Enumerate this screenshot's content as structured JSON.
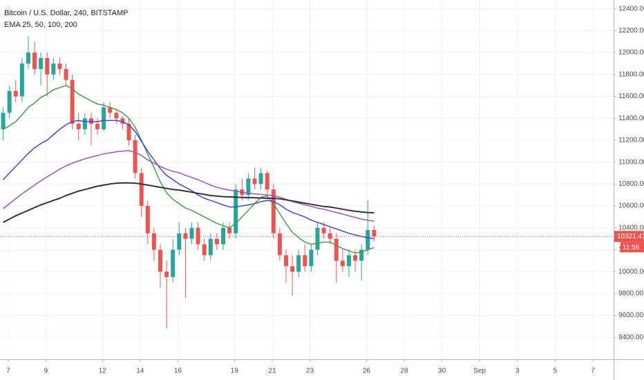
{
  "chart_data": {
    "type": "candlestick",
    "title": "Bitcoin / U.S. Dollar, 240, BITSTAMP",
    "subtitle": "EMA 25, 50, 100, 200",
    "up_color": "#26a69a",
    "down_color": "#ef5350",
    "grid": true,
    "countdown": "11:56",
    "open": [
      11300,
      11450,
      11650,
      11600,
      11900,
      12000,
      11850,
      11950,
      11800,
      11900,
      11850,
      11750,
      11350,
      11300,
      11400,
      11350,
      11300,
      11500,
      11450,
      11400,
      11350,
      11200,
      10900,
      10600,
      10350,
      10200,
      10000,
      9950,
      10200,
      10350,
      10300,
      10400,
      10250,
      10150,
      10300,
      10250,
      10400,
      10350,
      10750,
      10700,
      10850,
      10800,
      10900,
      10750,
      10350,
      10150,
      10050,
      10000,
      10150,
      10050,
      10200,
      10400,
      10350,
      10300,
      10100,
      10050,
      10150,
      10100,
      10200,
      10380
    ],
    "high": [
      11500,
      11700,
      11750,
      11950,
      12150,
      12100,
      12000,
      12000,
      11950,
      11950,
      11900,
      11800,
      11450,
      11450,
      11450,
      11400,
      11550,
      11550,
      11480,
      11420,
      11400,
      11250,
      10950,
      10650,
      10400,
      10250,
      10100,
      10300,
      10450,
      10400,
      10450,
      10450,
      10300,
      10350,
      10350,
      10450,
      10450,
      10800,
      10850,
      10900,
      10950,
      10950,
      10920,
      10800,
      10400,
      10200,
      10150,
      10200,
      10250,
      10250,
      10450,
      10450,
      10400,
      10350,
      10200,
      10200,
      10200,
      10250,
      10650,
      10420
    ],
    "low": [
      11200,
      11400,
      11550,
      11550,
      11850,
      11800,
      11700,
      11600,
      11750,
      11800,
      11700,
      11300,
      11200,
      11250,
      11150,
      11250,
      11280,
      11400,
      11350,
      11300,
      11150,
      10850,
      10500,
      10250,
      10100,
      9850,
      9480,
      9900,
      10150,
      9760,
      10250,
      10200,
      10100,
      10100,
      10200,
      10200,
      10300,
      10300,
      10650,
      10650,
      10750,
      10750,
      10700,
      10300,
      10100,
      9900,
      9780,
      9950,
      10000,
      10000,
      10150,
      10300,
      10250,
      9900,
      10000,
      9950,
      10000,
      9920,
      10150,
      10280
    ],
    "close": [
      11450,
      11650,
      11600,
      11900,
      12000,
      11850,
      11950,
      11800,
      11900,
      11850,
      11750,
      11350,
      11300,
      11400,
      11350,
      11300,
      11500,
      11450,
      11400,
      11350,
      11200,
      10900,
      10600,
      10350,
      10200,
      10000,
      9950,
      10200,
      10350,
      10300,
      10400,
      10250,
      10150,
      10300,
      10250,
      10400,
      10350,
      10750,
      10700,
      10850,
      10800,
      10900,
      10750,
      10350,
      10150,
      10050,
      10000,
      10150,
      10050,
      10200,
      10400,
      10350,
      10300,
      10100,
      10050,
      10150,
      10100,
      10200,
      10380,
      10321.41
    ],
    "series": [
      {
        "name": "EMA 25",
        "color": "#43a047",
        "values": [
          11300,
          11330,
          11370,
          11430,
          11500,
          11540,
          11590,
          11620,
          11660,
          11680,
          11700,
          11670,
          11620,
          11590,
          11560,
          11530,
          11520,
          11500,
          11480,
          11450,
          11400,
          11320,
          11200,
          11070,
          10950,
          10820,
          10720,
          10660,
          10620,
          10580,
          10560,
          10530,
          10500,
          10470,
          10440,
          10420,
          10400,
          10440,
          10500,
          10560,
          10620,
          10680,
          10690,
          10620,
          10530,
          10440,
          10360,
          10310,
          10270,
          10250,
          10260,
          10270,
          10270,
          10240,
          10210,
          10190,
          10170,
          10180,
          10200,
          10220
        ]
      },
      {
        "name": "EMA 50",
        "color": "#3f45e0",
        "values": [
          10840,
          10900,
          10960,
          11020,
          11080,
          11130,
          11170,
          11200,
          11250,
          11300,
          11340,
          11370,
          11380,
          11370,
          11370,
          11370,
          11380,
          11380,
          11380,
          11370,
          11340,
          11280,
          11190,
          11100,
          11020,
          10940,
          10880,
          10840,
          10800,
          10770,
          10740,
          10700,
          10670,
          10650,
          10630,
          10610,
          10590,
          10590,
          10600,
          10610,
          10620,
          10640,
          10650,
          10640,
          10610,
          10570,
          10540,
          10520,
          10500,
          10470,
          10450,
          10430,
          10410,
          10390,
          10370,
          10350,
          10335,
          10320,
          10310,
          10300
        ]
      },
      {
        "name": "EMA 100",
        "color": "#a24fc0",
        "values": [
          10575,
          10620,
          10665,
          10710,
          10750,
          10790,
          10830,
          10865,
          10900,
          10935,
          10966,
          10990,
          11010,
          11030,
          11045,
          11060,
          11075,
          11085,
          11095,
          11100,
          11105,
          11090,
          11060,
          11020,
          10990,
          10960,
          10935,
          10915,
          10903,
          10880,
          10860,
          10840,
          10815,
          10790,
          10770,
          10755,
          10745,
          10735,
          10725,
          10715,
          10710,
          10705,
          10700,
          10695,
          10680,
          10660,
          10640,
          10625,
          10610,
          10595,
          10580,
          10570,
          10555,
          10540,
          10525,
          10510,
          10495,
          10480,
          10470,
          10460
        ]
      },
      {
        "name": "EMA 200",
        "color": "#333333",
        "values": [
          10450,
          10480,
          10510,
          10535,
          10560,
          10585,
          10610,
          10630,
          10650,
          10670,
          10695,
          10715,
          10735,
          10750,
          10765,
          10780,
          10790,
          10800,
          10808,
          10810,
          10810,
          10808,
          10800,
          10790,
          10780,
          10770,
          10760,
          10750,
          10745,
          10735,
          10725,
          10715,
          10705,
          10695,
          10690,
          10685,
          10682,
          10680,
          10678,
          10676,
          10674,
          10672,
          10670,
          10670,
          10665,
          10655,
          10645,
          10635,
          10625,
          10615,
          10605,
          10595,
          10590,
          10580,
          10570,
          10560,
          10552,
          10545,
          10540,
          10537
        ]
      }
    ],
    "xlim": [
      -0.5,
      97.1
    ],
    "xticks": [
      {
        "value": 0.8,
        "label": "7"
      },
      {
        "value": 6.8,
        "label": "9"
      },
      {
        "value": 15.8,
        "label": "12"
      },
      {
        "value": 21.8,
        "label": "14"
      },
      {
        "value": 27.8,
        "label": "16"
      },
      {
        "value": 36.8,
        "label": "19"
      },
      {
        "value": 42.8,
        "label": "21"
      },
      {
        "value": 48.8,
        "label": "23"
      },
      {
        "value": 57.8,
        "label": "26"
      },
      {
        "value": 63.8,
        "label": "28"
      },
      {
        "value": 69.8,
        "label": "30"
      },
      {
        "value": 75.8,
        "label": "Sep"
      },
      {
        "value": 81.8,
        "label": "3"
      },
      {
        "value": 87.8,
        "label": "5"
      },
      {
        "value": 93.8,
        "label": "7"
      }
    ],
    "ylim": [
      9200,
      12480
    ],
    "yticks": [
      {
        "value": 9400,
        "label": "9400.00"
      },
      {
        "value": 9600,
        "label": "9600.00"
      },
      {
        "value": 9800,
        "label": "9800.00"
      },
      {
        "value": 10000,
        "label": "10000.00"
      },
      {
        "value": 10200,
        "label": "10200.00"
      },
      {
        "value": 10400,
        "label": "10400.00"
      },
      {
        "value": 10600,
        "label": "10600.00"
      },
      {
        "value": 10800,
        "label": "10800.00"
      },
      {
        "value": 11000,
        "label": "11000.00"
      },
      {
        "value": 11200,
        "label": "11200.00"
      },
      {
        "value": 11400,
        "label": "11400.00"
      },
      {
        "value": 11600,
        "label": "11600.00"
      },
      {
        "value": 11800,
        "label": "11800.00"
      },
      {
        "value": 12000,
        "label": "12000.00"
      },
      {
        "value": 12200,
        "label": "12200.00"
      },
      {
        "value": 12400,
        "label": "12400.00"
      }
    ]
  }
}
